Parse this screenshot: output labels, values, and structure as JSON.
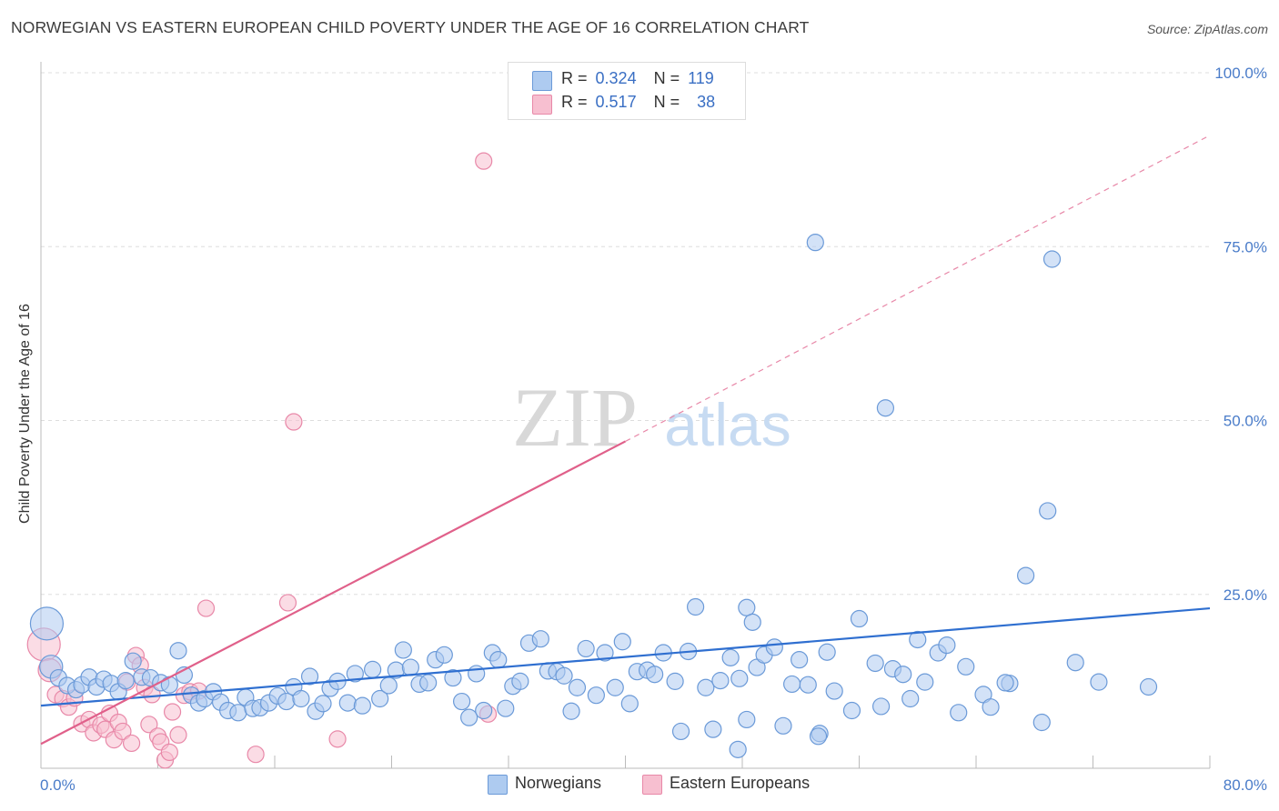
{
  "title": "NORWEGIAN VS EASTERN EUROPEAN CHILD POVERTY UNDER THE AGE OF 16 CORRELATION CHART",
  "source": "Source: ZipAtlas.com",
  "watermark": {
    "zip": "ZIP",
    "atlas": "atlas"
  },
  "legend": {
    "rows": [
      {
        "r_label": "R =",
        "r_value": "0.324",
        "n_label": "N =",
        "n_value": "119"
      },
      {
        "r_label": "R =",
        "r_value": "0.517",
        "n_label": "N =",
        "n_value": "38"
      }
    ]
  },
  "bottom_legend": {
    "norwegians": "Norwegians",
    "eastern_europeans": "Eastern Europeans"
  },
  "colors": {
    "blue_fill": "#aecbf0",
    "blue_stroke": "#6b9ad8",
    "blue_line": "#2f6fd0",
    "pink_fill": "#f7bfd0",
    "pink_stroke": "#e888a8",
    "pink_line": "#e0608a",
    "tick": "#4a7cc9",
    "grid": "#dddddd"
  },
  "chart_data": {
    "type": "scatter",
    "xlabel": "",
    "ylabel": "Child Poverty Under the Age of 16",
    "xlim": [
      0,
      80
    ],
    "ylim": [
      0,
      100
    ],
    "x_tick_labels": {
      "min": "0.0%",
      "max": "80.0%"
    },
    "y_tick_labels": [
      "25.0%",
      "50.0%",
      "75.0%",
      "100.0%"
    ],
    "y_tick_values": [
      25,
      50,
      75,
      100
    ],
    "x_minor_ticks": [
      8,
      16,
      24,
      32,
      40,
      48,
      56,
      64,
      72,
      80
    ],
    "series": [
      {
        "name": "Norwegians",
        "r": 0.324,
        "n": 119,
        "trend": {
          "x0": 0,
          "y0": 9.0,
          "x1": 80,
          "y1": 23.0
        },
        "points": [
          [
            0.4,
            20.8,
            2
          ],
          [
            0.7,
            14.6,
            1.4
          ],
          [
            1.2,
            13.0,
            1
          ],
          [
            1.8,
            11.9,
            1
          ],
          [
            2.4,
            11.3,
            1
          ],
          [
            2.8,
            12.0,
            1
          ],
          [
            3.3,
            13.1,
            1
          ],
          [
            3.8,
            11.7,
            1
          ],
          [
            4.3,
            12.8,
            1
          ],
          [
            4.8,
            12.2,
            1
          ],
          [
            5.3,
            11.0,
            1
          ],
          [
            5.8,
            12.6,
            1
          ],
          [
            6.3,
            15.4,
            1
          ],
          [
            6.9,
            13.1,
            1
          ],
          [
            7.5,
            13.0,
            1
          ],
          [
            8.2,
            12.3,
            1
          ],
          [
            8.8,
            12.0,
            1
          ],
          [
            9.4,
            16.9,
            1
          ],
          [
            9.8,
            13.4,
            1
          ],
          [
            10.3,
            10.5,
            1
          ],
          [
            10.8,
            9.4,
            1
          ],
          [
            11.2,
            10.0,
            1
          ],
          [
            11.8,
            11.0,
            1
          ],
          [
            12.3,
            9.5,
            1
          ],
          [
            12.8,
            8.3,
            1
          ],
          [
            13.5,
            8.0,
            1
          ],
          [
            14.0,
            10.2,
            1
          ],
          [
            14.5,
            8.6,
            1
          ],
          [
            15.0,
            8.7,
            1
          ],
          [
            15.6,
            9.4,
            1
          ],
          [
            16.2,
            10.4,
            1
          ],
          [
            16.8,
            9.6,
            1
          ],
          [
            17.3,
            11.7,
            1
          ],
          [
            17.8,
            10.0,
            1
          ],
          [
            18.4,
            13.2,
            1
          ],
          [
            18.8,
            8.2,
            1
          ],
          [
            19.3,
            9.3,
            1
          ],
          [
            19.8,
            11.5,
            1
          ],
          [
            20.3,
            12.5,
            1
          ],
          [
            21.0,
            9.4,
            1
          ],
          [
            21.5,
            13.6,
            1
          ],
          [
            22.0,
            9.0,
            1
          ],
          [
            22.7,
            14.2,
            1
          ],
          [
            23.2,
            10.0,
            1
          ],
          [
            23.8,
            11.9,
            1
          ],
          [
            24.3,
            14.1,
            1
          ],
          [
            24.8,
            17.0,
            1
          ],
          [
            25.3,
            14.5,
            1
          ],
          [
            25.9,
            12.1,
            1
          ],
          [
            26.5,
            12.3,
            1
          ],
          [
            27.0,
            15.6,
            1
          ],
          [
            27.6,
            16.3,
            1
          ],
          [
            28.2,
            13.0,
            1
          ],
          [
            28.8,
            9.6,
            1
          ],
          [
            29.3,
            7.3,
            1
          ],
          [
            29.8,
            13.6,
            1
          ],
          [
            30.3,
            8.3,
            1
          ],
          [
            30.9,
            16.6,
            1
          ],
          [
            31.3,
            15.6,
            1
          ],
          [
            31.8,
            8.6,
            1
          ],
          [
            32.3,
            11.8,
            1
          ],
          [
            32.8,
            12.5,
            1
          ],
          [
            33.4,
            18.0,
            1
          ],
          [
            34.2,
            18.6,
            1
          ],
          [
            34.7,
            14.0,
            1
          ],
          [
            35.3,
            13.9,
            1
          ],
          [
            35.8,
            13.3,
            1
          ],
          [
            36.3,
            8.2,
            1
          ],
          [
            36.7,
            11.6,
            1
          ],
          [
            37.3,
            17.2,
            1
          ],
          [
            38.0,
            10.5,
            1
          ],
          [
            38.6,
            16.6,
            1
          ],
          [
            39.3,
            11.6,
            1
          ],
          [
            39.8,
            18.2,
            1
          ],
          [
            40.3,
            9.3,
            1
          ],
          [
            40.8,
            13.9,
            1
          ],
          [
            41.5,
            14.1,
            1
          ],
          [
            42.0,
            13.5,
            1
          ],
          [
            42.6,
            16.6,
            1
          ],
          [
            43.4,
            12.5,
            1
          ],
          [
            43.8,
            5.3,
            1
          ],
          [
            44.3,
            16.8,
            1
          ],
          [
            44.8,
            23.2,
            1
          ],
          [
            45.5,
            11.6,
            1
          ],
          [
            46.0,
            5.6,
            1
          ],
          [
            46.5,
            12.6,
            1
          ],
          [
            47.2,
            15.9,
            1
          ],
          [
            47.8,
            12.9,
            1
          ],
          [
            48.3,
            23.1,
            1
          ],
          [
            48.7,
            21.0,
            1
          ],
          [
            48.3,
            7.0,
            1
          ],
          [
            49.0,
            14.5,
            1
          ],
          [
            49.5,
            16.3,
            1
          ],
          [
            50.2,
            17.4,
            1
          ],
          [
            50.8,
            6.1,
            1
          ],
          [
            51.4,
            12.1,
            1
          ],
          [
            51.9,
            15.6,
            1
          ],
          [
            52.5,
            12.0,
            1
          ],
          [
            53.0,
            75.6,
            1
          ],
          [
            53.3,
            5.0,
            1
          ],
          [
            53.8,
            16.7,
            1
          ],
          [
            54.3,
            11.1,
            1
          ],
          [
            55.5,
            8.3,
            1
          ],
          [
            56.0,
            21.5,
            1
          ],
          [
            57.1,
            15.1,
            1
          ],
          [
            57.8,
            51.8,
            1
          ],
          [
            58.3,
            14.3,
            1
          ],
          [
            59.0,
            13.5,
            1
          ],
          [
            60.5,
            12.4,
            1
          ],
          [
            61.4,
            16.6,
            1
          ],
          [
            62.0,
            17.7,
            1
          ],
          [
            63.3,
            14.6,
            1
          ],
          [
            64.5,
            10.6,
            1
          ],
          [
            65.0,
            8.8,
            1
          ],
          [
            66.3,
            12.2,
            1
          ],
          [
            67.4,
            27.7,
            1
          ],
          [
            68.5,
            6.6,
            1
          ],
          [
            68.9,
            37.0,
            1
          ],
          [
            69.2,
            73.2,
            1
          ],
          [
            53.2,
            4.6,
            1
          ],
          [
            47.7,
            2.7,
            1
          ],
          [
            72.4,
            12.4,
            1
          ],
          [
            75.8,
            11.7,
            1
          ],
          [
            59.5,
            10.0,
            1
          ],
          [
            66.0,
            12.3,
            1
          ],
          [
            57.5,
            8.9,
            1
          ],
          [
            62.8,
            8.0,
            1
          ],
          [
            60.0,
            18.5,
            1
          ],
          [
            70.8,
            15.2,
            1
          ]
        ]
      },
      {
        "name": "Eastern Europeans",
        "r": 0.517,
        "n": 38,
        "trend": {
          "x0": 0,
          "y0": 3.5,
          "x1": 40,
          "y1": 47.0,
          "dash_x1": 80,
          "dash_y1": 91.0
        },
        "points": [
          [
            0.2,
            17.8,
            2
          ],
          [
            0.6,
            14.1,
            1.4
          ],
          [
            1.0,
            10.6,
            1
          ],
          [
            1.5,
            10.0,
            1
          ],
          [
            1.9,
            8.8,
            1
          ],
          [
            2.3,
            10.1,
            1
          ],
          [
            2.8,
            6.4,
            1
          ],
          [
            3.3,
            7.0,
            1
          ],
          [
            3.6,
            5.1,
            1
          ],
          [
            4.1,
            6.2,
            1
          ],
          [
            4.4,
            5.6,
            1
          ],
          [
            4.7,
            7.9,
            1
          ],
          [
            5.0,
            4.1,
            1
          ],
          [
            5.3,
            6.6,
            1
          ],
          [
            5.6,
            5.3,
            1
          ],
          [
            5.9,
            12.4,
            1
          ],
          [
            6.2,
            3.6,
            1
          ],
          [
            6.5,
            16.2,
            1
          ],
          [
            6.8,
            14.8,
            1
          ],
          [
            7.1,
            11.6,
            1
          ],
          [
            7.4,
            6.3,
            1
          ],
          [
            7.6,
            10.6,
            1
          ],
          [
            8.0,
            4.6,
            1
          ],
          [
            8.2,
            3.8,
            1
          ],
          [
            8.5,
            1.2,
            1
          ],
          [
            8.8,
            2.3,
            1
          ],
          [
            9.0,
            8.1,
            1
          ],
          [
            9.4,
            4.8,
            1
          ],
          [
            9.8,
            10.5,
            1
          ],
          [
            10.2,
            11.0,
            1
          ],
          [
            10.8,
            11.1,
            1
          ],
          [
            11.3,
            23.0,
            1
          ],
          [
            14.7,
            2.0,
            1
          ],
          [
            16.9,
            23.8,
            1
          ],
          [
            17.3,
            49.8,
            1
          ],
          [
            20.3,
            4.2,
            1
          ],
          [
            30.3,
            87.3,
            1
          ],
          [
            30.6,
            7.8,
            1
          ]
        ]
      }
    ]
  }
}
